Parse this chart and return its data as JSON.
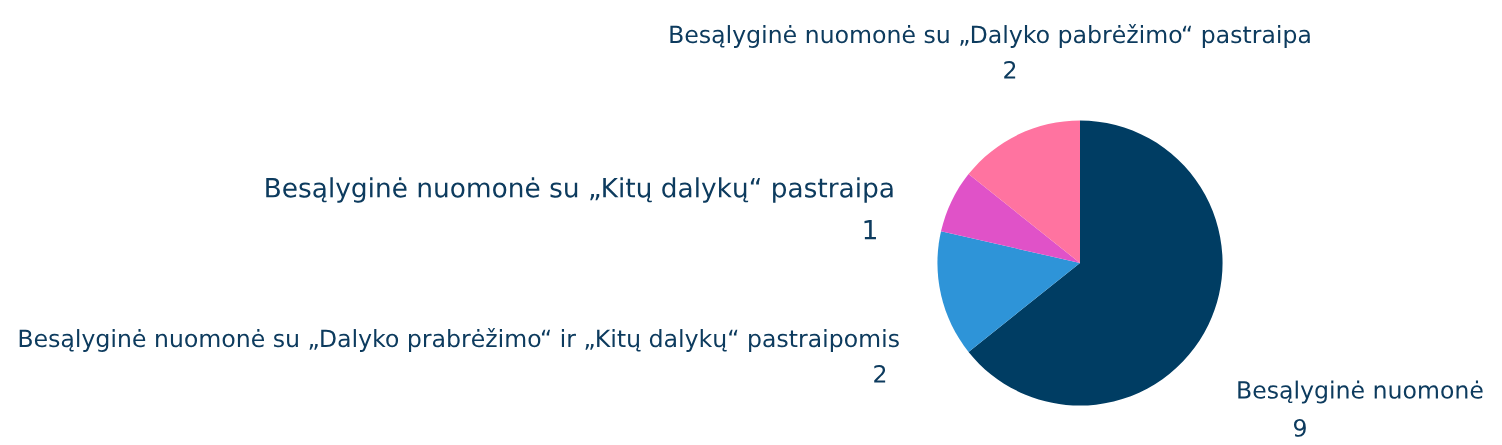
{
  "chart_data": {
    "type": "pie",
    "categories": [
      "Besąlyginė nuomonė",
      "Besąlyginė nuomonė su „Dalyko prabrėžimo“ ir „Kitų dalykų“ pastraipomis",
      "Besąlyginė nuomonė su „Kitų dalykų“ pastraipa",
      "Besąlyginė nuomonė su „Dalyko pabrėžimo“ pastraipa"
    ],
    "values": [
      9,
      2,
      1,
      2
    ],
    "colors": [
      "#003d63",
      "#2e94d8",
      "#e052c8",
      "#ff73a0"
    ],
    "data_labels": true,
    "legend": false
  }
}
